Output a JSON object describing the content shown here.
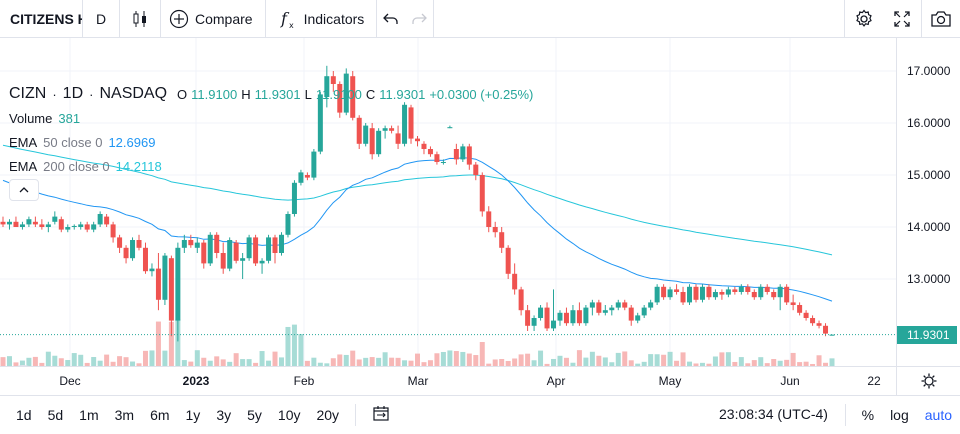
{
  "toolbar": {
    "symbol": "CITIZENS HOLDING",
    "interval": "D",
    "compare_label": "Compare",
    "indicators_label": "Indicators"
  },
  "legend": {
    "symbol": "CIZN",
    "interval": "1D",
    "exchange": "NASDAQ",
    "open_key": "O",
    "open": "11.9100",
    "high_key": "H",
    "high": "11.9301",
    "low_key": "L",
    "low": "11.9100",
    "close_key": "C",
    "close": "11.9301",
    "change": "+0.0300 (+0.25%)",
    "volume_label": "Volume",
    "volume_value": "381",
    "ema50_label": "EMA",
    "ema50_params": "50 close 0",
    "ema50_value": "12.6969",
    "ema200_label": "EMA",
    "ema200_params": "200 close 0",
    "ema200_value": "14.2118"
  },
  "price_axis": {
    "ticks": [
      "17.0000",
      "16.0000",
      "15.0000",
      "14.0000",
      "13.0000"
    ],
    "last_price": "11.9301"
  },
  "time_axis": {
    "labels": [
      {
        "text": "Dec",
        "bold": false
      },
      {
        "text": "2023",
        "bold": true
      },
      {
        "text": "Feb",
        "bold": false
      },
      {
        "text": "Mar",
        "bold": false
      },
      {
        "text": "Apr",
        "bold": false
      },
      {
        "text": "May",
        "bold": false
      },
      {
        "text": "Jun",
        "bold": false
      },
      {
        "text": "22",
        "bold": false
      }
    ]
  },
  "bottom": {
    "ranges": [
      "1d",
      "5d",
      "1m",
      "3m",
      "6m",
      "1y",
      "3y",
      "5y",
      "10y",
      "20y"
    ],
    "clock": "23:08:34 (UTC-4)",
    "percent": "%",
    "log": "log",
    "auto": "auto"
  },
  "colors": {
    "up": "#26a69a",
    "down": "#ef5350",
    "ema50": "#2196f3",
    "ema200": "#26c6da",
    "accent": "#2962ff"
  },
  "chart_data": {
    "type": "candlestick",
    "y_range": [
      11.4,
      17.4
    ],
    "candles": [
      [
        14.1,
        14.2,
        14.0,
        14.05
      ],
      [
        14.05,
        14.15,
        13.95,
        14.1
      ],
      [
        14.1,
        14.2,
        14.0,
        14.0
      ],
      [
        14.0,
        14.1,
        13.95,
        14.05
      ],
      [
        14.05,
        14.2,
        14.0,
        14.15
      ],
      [
        14.1,
        14.2,
        14.0,
        14.05
      ],
      [
        14.05,
        14.15,
        13.95,
        14.0
      ],
      [
        14.0,
        14.1,
        13.9,
        14.05
      ],
      [
        14.1,
        14.3,
        14.05,
        14.2
      ],
      [
        14.15,
        14.2,
        13.9,
        13.95
      ],
      [
        13.95,
        14.05,
        13.9,
        14.0
      ],
      [
        14.0,
        14.05,
        13.95,
        14.02
      ],
      [
        14.0,
        14.1,
        13.95,
        14.05
      ],
      [
        14.05,
        14.1,
        13.9,
        13.95
      ],
      [
        13.95,
        14.1,
        13.9,
        14.05
      ],
      [
        14.05,
        14.3,
        14.0,
        14.25
      ],
      [
        14.2,
        14.25,
        14.0,
        14.05
      ],
      [
        14.05,
        14.1,
        13.7,
        13.8
      ],
      [
        13.8,
        13.85,
        13.5,
        13.6
      ],
      [
        13.6,
        13.65,
        13.3,
        13.4
      ],
      [
        13.4,
        13.8,
        13.35,
        13.75
      ],
      [
        13.75,
        13.85,
        13.55,
        13.6
      ],
      [
        13.6,
        13.7,
        13.1,
        13.15
      ],
      [
        13.15,
        13.3,
        13.05,
        13.2
      ],
      [
        13.2,
        13.5,
        12.4,
        12.6
      ],
      [
        12.6,
        13.5,
        12.5,
        13.45
      ],
      [
        13.4,
        13.45,
        11.9,
        12.2
      ],
      [
        12.2,
        13.7,
        11.8,
        13.6
      ],
      [
        13.6,
        13.85,
        13.5,
        13.75
      ],
      [
        13.75,
        13.85,
        13.6,
        13.65
      ],
      [
        13.6,
        13.8,
        13.5,
        13.7
      ],
      [
        13.7,
        13.75,
        13.2,
        13.3
      ],
      [
        13.3,
        13.9,
        13.25,
        13.85
      ],
      [
        13.85,
        13.9,
        13.4,
        13.5
      ],
      [
        13.5,
        13.7,
        13.1,
        13.2
      ],
      [
        13.2,
        13.8,
        13.15,
        13.75
      ],
      [
        13.7,
        13.75,
        13.3,
        13.35
      ],
      [
        13.35,
        13.5,
        13.0,
        13.4
      ],
      [
        13.4,
        13.85,
        13.35,
        13.8
      ],
      [
        13.8,
        13.85,
        13.25,
        13.3
      ],
      [
        13.3,
        13.4,
        13.1,
        13.35
      ],
      [
        13.35,
        13.85,
        13.3,
        13.8
      ],
      [
        13.8,
        13.85,
        13.3,
        13.5
      ],
      [
        13.5,
        13.9,
        13.45,
        13.85
      ],
      [
        13.85,
        14.3,
        13.8,
        14.25
      ],
      [
        14.25,
        14.9,
        14.2,
        14.85
      ],
      [
        14.85,
        15.1,
        14.8,
        15.05
      ],
      [
        15.0,
        15.05,
        14.9,
        14.95
      ],
      [
        14.95,
        15.5,
        14.9,
        15.45
      ],
      [
        15.45,
        16.6,
        15.4,
        16.55
      ],
      [
        16.5,
        17.1,
        16.3,
        16.9
      ],
      [
        16.9,
        17.0,
        16.6,
        16.75
      ],
      [
        16.75,
        16.8,
        16.1,
        16.2
      ],
      [
        16.2,
        17.05,
        16.15,
        16.95
      ],
      [
        16.9,
        17.0,
        16.05,
        16.1
      ],
      [
        16.1,
        16.15,
        15.5,
        15.6
      ],
      [
        15.6,
        16.0,
        15.55,
        15.95
      ],
      [
        15.9,
        16.0,
        15.3,
        15.4
      ],
      [
        15.4,
        15.9,
        15.35,
        15.85
      ],
      [
        15.85,
        15.95,
        15.7,
        15.9
      ],
      [
        15.9,
        15.95,
        15.8,
        15.85
      ],
      [
        15.8,
        15.95,
        15.5,
        15.6
      ],
      [
        15.6,
        16.4,
        15.55,
        16.35
      ],
      [
        16.3,
        16.35,
        15.6,
        15.7
      ],
      [
        15.7,
        15.75,
        15.55,
        15.65
      ],
      [
        15.6,
        15.65,
        15.4,
        15.5
      ],
      [
        15.5,
        15.55,
        15.35,
        15.4
      ],
      [
        15.4,
        15.45,
        15.2,
        15.25
      ],
      [
        15.25,
        15.3,
        15.2,
        15.25
      ],
      [
        15.9,
        15.95,
        15.9,
        15.92
      ],
      [
        15.5,
        15.6,
        15.2,
        15.3
      ],
      [
        15.3,
        15.6,
        15.25,
        15.55
      ],
      [
        15.55,
        15.6,
        15.1,
        15.2
      ],
      [
        15.2,
        15.25,
        14.9,
        15.0
      ],
      [
        15.0,
        15.05,
        14.2,
        14.3
      ],
      [
        14.3,
        14.4,
        13.9,
        14.0
      ],
      [
        14.0,
        14.1,
        13.8,
        13.9
      ],
      [
        13.9,
        14.0,
        13.5,
        13.6
      ],
      [
        13.6,
        13.65,
        13.0,
        13.1
      ],
      [
        13.1,
        13.3,
        12.7,
        12.8
      ],
      [
        12.8,
        12.85,
        12.3,
        12.4
      ],
      [
        12.4,
        12.5,
        12.0,
        12.1
      ],
      [
        12.1,
        12.3,
        12.0,
        12.25
      ],
      [
        12.25,
        12.5,
        12.2,
        12.45
      ],
      [
        12.45,
        12.55,
        12.0,
        12.05
      ],
      [
        12.05,
        12.8,
        12.0,
        12.2
      ],
      [
        12.2,
        12.4,
        12.1,
        12.35
      ],
      [
        12.35,
        12.45,
        12.1,
        12.15
      ],
      [
        12.15,
        12.5,
        12.1,
        12.4
      ],
      [
        12.4,
        12.55,
        12.1,
        12.15
      ],
      [
        12.15,
        12.5,
        12.1,
        12.45
      ],
      [
        12.45,
        12.6,
        12.3,
        12.55
      ],
      [
        12.55,
        12.6,
        12.3,
        12.35
      ],
      [
        12.35,
        12.5,
        12.3,
        12.4
      ],
      [
        12.4,
        12.5,
        12.3,
        12.45
      ],
      [
        12.45,
        12.6,
        12.4,
        12.55
      ],
      [
        12.55,
        12.6,
        12.4,
        12.45
      ],
      [
        12.45,
        12.5,
        12.1,
        12.2
      ],
      [
        12.2,
        12.35,
        12.15,
        12.3
      ],
      [
        12.3,
        12.5,
        12.25,
        12.45
      ],
      [
        12.45,
        12.6,
        12.4,
        12.55
      ],
      [
        12.55,
        12.9,
        12.5,
        12.85
      ],
      [
        12.85,
        12.9,
        12.6,
        12.65
      ],
      [
        12.65,
        12.85,
        12.6,
        12.8
      ],
      [
        12.8,
        12.9,
        12.7,
        12.75
      ],
      [
        12.75,
        12.85,
        12.5,
        12.55
      ],
      [
        12.55,
        12.9,
        12.5,
        12.85
      ],
      [
        12.85,
        12.9,
        12.55,
        12.6
      ],
      [
        12.6,
        12.9,
        12.55,
        12.85
      ],
      [
        12.85,
        12.9,
        12.6,
        12.65
      ],
      [
        12.65,
        12.8,
        12.6,
        12.75
      ],
      [
        12.75,
        12.8,
        12.6,
        12.7
      ],
      [
        12.7,
        12.85,
        12.65,
        12.8
      ],
      [
        12.8,
        12.85,
        12.7,
        12.75
      ],
      [
        12.75,
        12.9,
        12.7,
        12.85
      ],
      [
        12.85,
        12.9,
        12.7,
        12.75
      ],
      [
        12.75,
        12.8,
        12.6,
        12.65
      ],
      [
        12.65,
        12.9,
        12.6,
        12.85
      ],
      [
        12.85,
        12.9,
        12.7,
        12.75
      ],
      [
        12.75,
        12.8,
        12.6,
        12.65
      ],
      [
        12.65,
        12.9,
        12.4,
        12.85
      ],
      [
        12.85,
        12.9,
        12.5,
        12.55
      ],
      [
        12.55,
        12.7,
        12.4,
        12.5
      ],
      [
        12.5,
        12.55,
        12.3,
        12.35
      ],
      [
        12.35,
        12.4,
        12.2,
        12.25
      ],
      [
        12.25,
        12.3,
        12.1,
        12.15
      ],
      [
        12.15,
        12.2,
        12.05,
        12.1
      ],
      [
        12.1,
        12.15,
        11.9,
        11.95
      ],
      [
        11.91,
        11.9301,
        11.91,
        11.9301
      ]
    ]
  }
}
